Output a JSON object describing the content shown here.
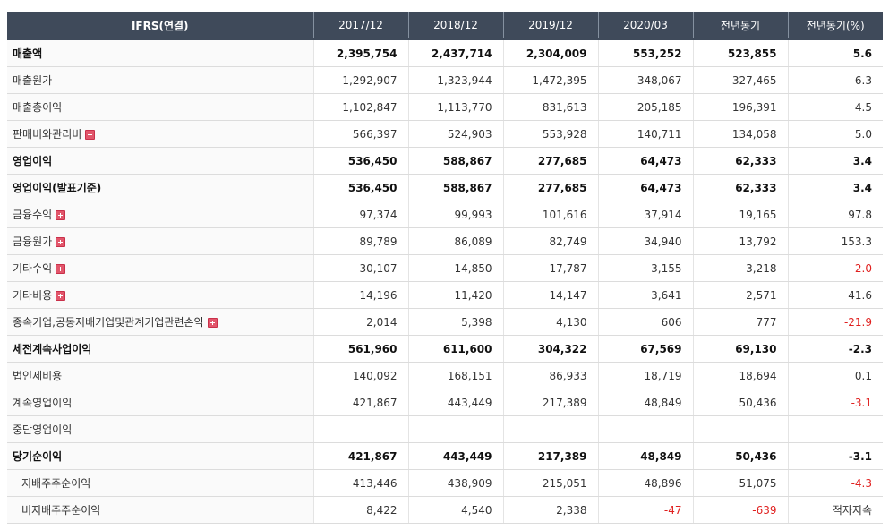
{
  "header": {
    "label": "IFRS(연결)",
    "columns": [
      "2017/12",
      "2018/12",
      "2019/12",
      "2020/03",
      "전년동기",
      "전년동기(%)"
    ]
  },
  "rows": [
    {
      "label": "매출액",
      "bold": true,
      "expand": false,
      "indent": false,
      "values": [
        "2,395,754",
        "2,437,714",
        "2,304,009",
        "553,252",
        "523,855",
        "5.6"
      ]
    },
    {
      "label": "매출원가",
      "bold": false,
      "expand": false,
      "indent": false,
      "values": [
        "1,292,907",
        "1,323,944",
        "1,472,395",
        "348,067",
        "327,465",
        "6.3"
      ]
    },
    {
      "label": "매출총이익",
      "bold": false,
      "expand": false,
      "indent": false,
      "values": [
        "1,102,847",
        "1,113,770",
        "831,613",
        "205,185",
        "196,391",
        "4.5"
      ]
    },
    {
      "label": "판매비와관리비",
      "bold": false,
      "expand": true,
      "indent": false,
      "values": [
        "566,397",
        "524,903",
        "553,928",
        "140,711",
        "134,058",
        "5.0"
      ]
    },
    {
      "label": "영업이익",
      "bold": true,
      "expand": false,
      "indent": false,
      "values": [
        "536,450",
        "588,867",
        "277,685",
        "64,473",
        "62,333",
        "3.4"
      ]
    },
    {
      "label": "영업이익(발표기준)",
      "bold": true,
      "expand": false,
      "indent": false,
      "values": [
        "536,450",
        "588,867",
        "277,685",
        "64,473",
        "62,333",
        "3.4"
      ]
    },
    {
      "label": "금융수익",
      "bold": false,
      "expand": true,
      "indent": false,
      "values": [
        "97,374",
        "99,993",
        "101,616",
        "37,914",
        "19,165",
        "97.8"
      ]
    },
    {
      "label": "금융원가",
      "bold": false,
      "expand": true,
      "indent": false,
      "values": [
        "89,789",
        "86,089",
        "82,749",
        "34,940",
        "13,792",
        "153.3"
      ]
    },
    {
      "label": "기타수익",
      "bold": false,
      "expand": true,
      "indent": false,
      "values": [
        "30,107",
        "14,850",
        "17,787",
        "3,155",
        "3,218",
        "-2.0"
      ]
    },
    {
      "label": "기타비용",
      "bold": false,
      "expand": true,
      "indent": false,
      "values": [
        "14,196",
        "11,420",
        "14,147",
        "3,641",
        "2,571",
        "41.6"
      ]
    },
    {
      "label": "종속기업,공동지배기업및관계기업관련손익",
      "bold": false,
      "expand": true,
      "indent": false,
      "values": [
        "2,014",
        "5,398",
        "4,130",
        "606",
        "777",
        "-21.9"
      ]
    },
    {
      "label": "세전계속사업이익",
      "bold": true,
      "expand": false,
      "indent": false,
      "values": [
        "561,960",
        "611,600",
        "304,322",
        "67,569",
        "69,130",
        "-2.3"
      ]
    },
    {
      "label": "법인세비용",
      "bold": false,
      "expand": false,
      "indent": false,
      "values": [
        "140,092",
        "168,151",
        "86,933",
        "18,719",
        "18,694",
        "0.1"
      ]
    },
    {
      "label": "계속영업이익",
      "bold": false,
      "expand": false,
      "indent": false,
      "values": [
        "421,867",
        "443,449",
        "217,389",
        "48,849",
        "50,436",
        "-3.1"
      ]
    },
    {
      "label": "중단영업이익",
      "bold": false,
      "expand": false,
      "indent": false,
      "values": [
        "",
        "",
        "",
        "",
        "",
        ""
      ]
    },
    {
      "label": "당기순이익",
      "bold": true,
      "expand": false,
      "indent": false,
      "values": [
        "421,867",
        "443,449",
        "217,389",
        "48,849",
        "50,436",
        "-3.1"
      ]
    },
    {
      "label": "지배주주순이익",
      "bold": false,
      "expand": false,
      "indent": true,
      "values": [
        "413,446",
        "438,909",
        "215,051",
        "48,896",
        "51,075",
        "-4.3"
      ]
    },
    {
      "label": "비지배주주순이익",
      "bold": false,
      "expand": false,
      "indent": true,
      "values": [
        "8,422",
        "4,540",
        "2,338",
        "-47",
        "-639",
        "적자지속"
      ]
    }
  ],
  "colors": {
    "header_bg": "#3f4a5a",
    "negative": "#e0201f",
    "expand_icon": "#e2566b"
  },
  "icons": {
    "expand": "plus-icon"
  }
}
